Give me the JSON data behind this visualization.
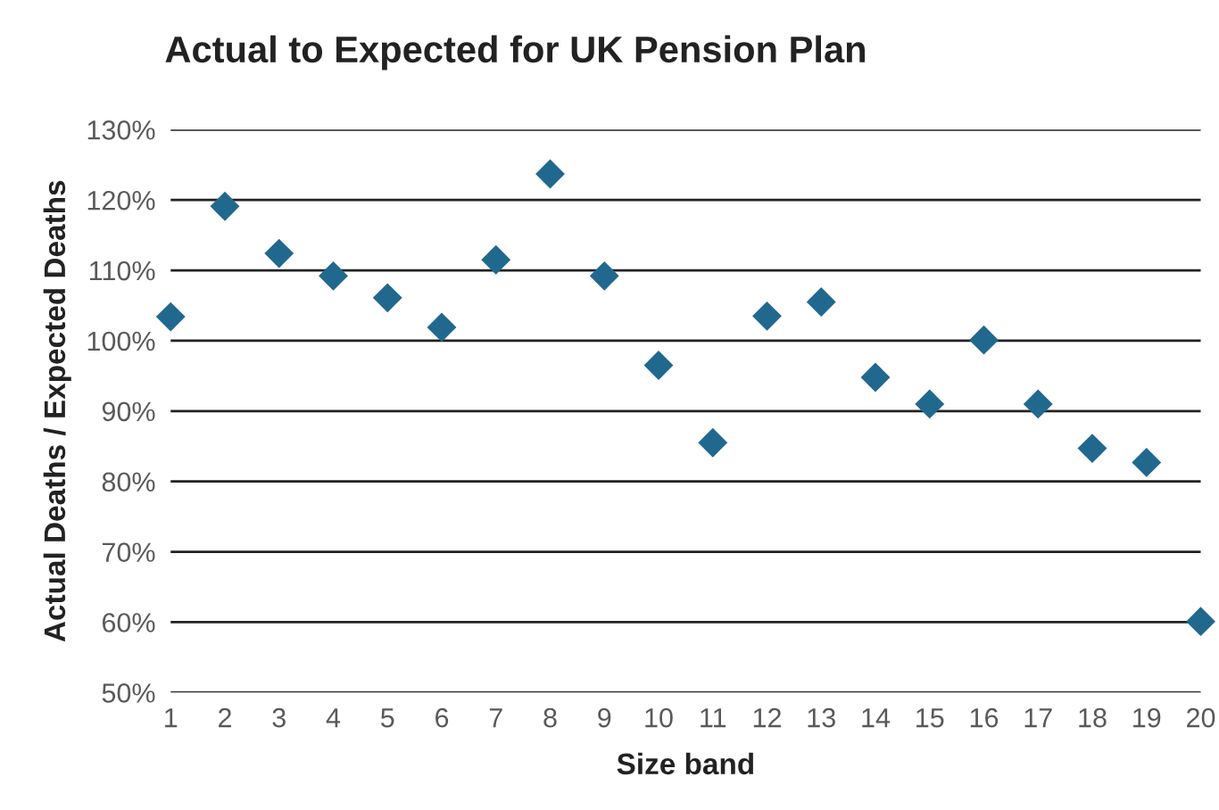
{
  "chart_data": {
    "type": "scatter",
    "title": "Actual to Expected for UK Pension Plan",
    "xlabel": "Size band",
    "ylabel": "Actual Deaths / Expected Deaths",
    "x": [
      1,
      2,
      3,
      4,
      5,
      6,
      7,
      8,
      9,
      10,
      11,
      12,
      13,
      14,
      15,
      16,
      17,
      18,
      19,
      20
    ],
    "series": [
      {
        "color": "#21688f",
        "values": [
          103.4,
          119.1,
          112.4,
          109.2,
          106.1,
          101.9,
          111.5,
          123.7,
          109.2,
          96.5,
          85.5,
          103.5,
          105.5,
          94.8,
          91.0,
          100.1,
          91.0,
          84.7,
          82.7,
          60.1
        ]
      }
    ],
    "marker": "diamond",
    "grid": "y",
    "xlim": [
      1,
      20
    ],
    "xticks": [
      1,
      2,
      3,
      4,
      5,
      6,
      7,
      8,
      9,
      10,
      11,
      12,
      13,
      14,
      15,
      16,
      17,
      18,
      19,
      20
    ],
    "ylim": [
      50,
      130
    ],
    "yticks": [
      {
        "value": 50,
        "label": "50%"
      },
      {
        "value": 60,
        "label": "60%"
      },
      {
        "value": 70,
        "label": "70%"
      },
      {
        "value": 80,
        "label": "80%"
      },
      {
        "value": 90,
        "label": "90%"
      },
      {
        "value": 100,
        "label": "100%"
      },
      {
        "value": 110,
        "label": "110%"
      },
      {
        "value": 120,
        "label": "120%"
      },
      {
        "value": 130,
        "label": "130%"
      }
    ]
  }
}
